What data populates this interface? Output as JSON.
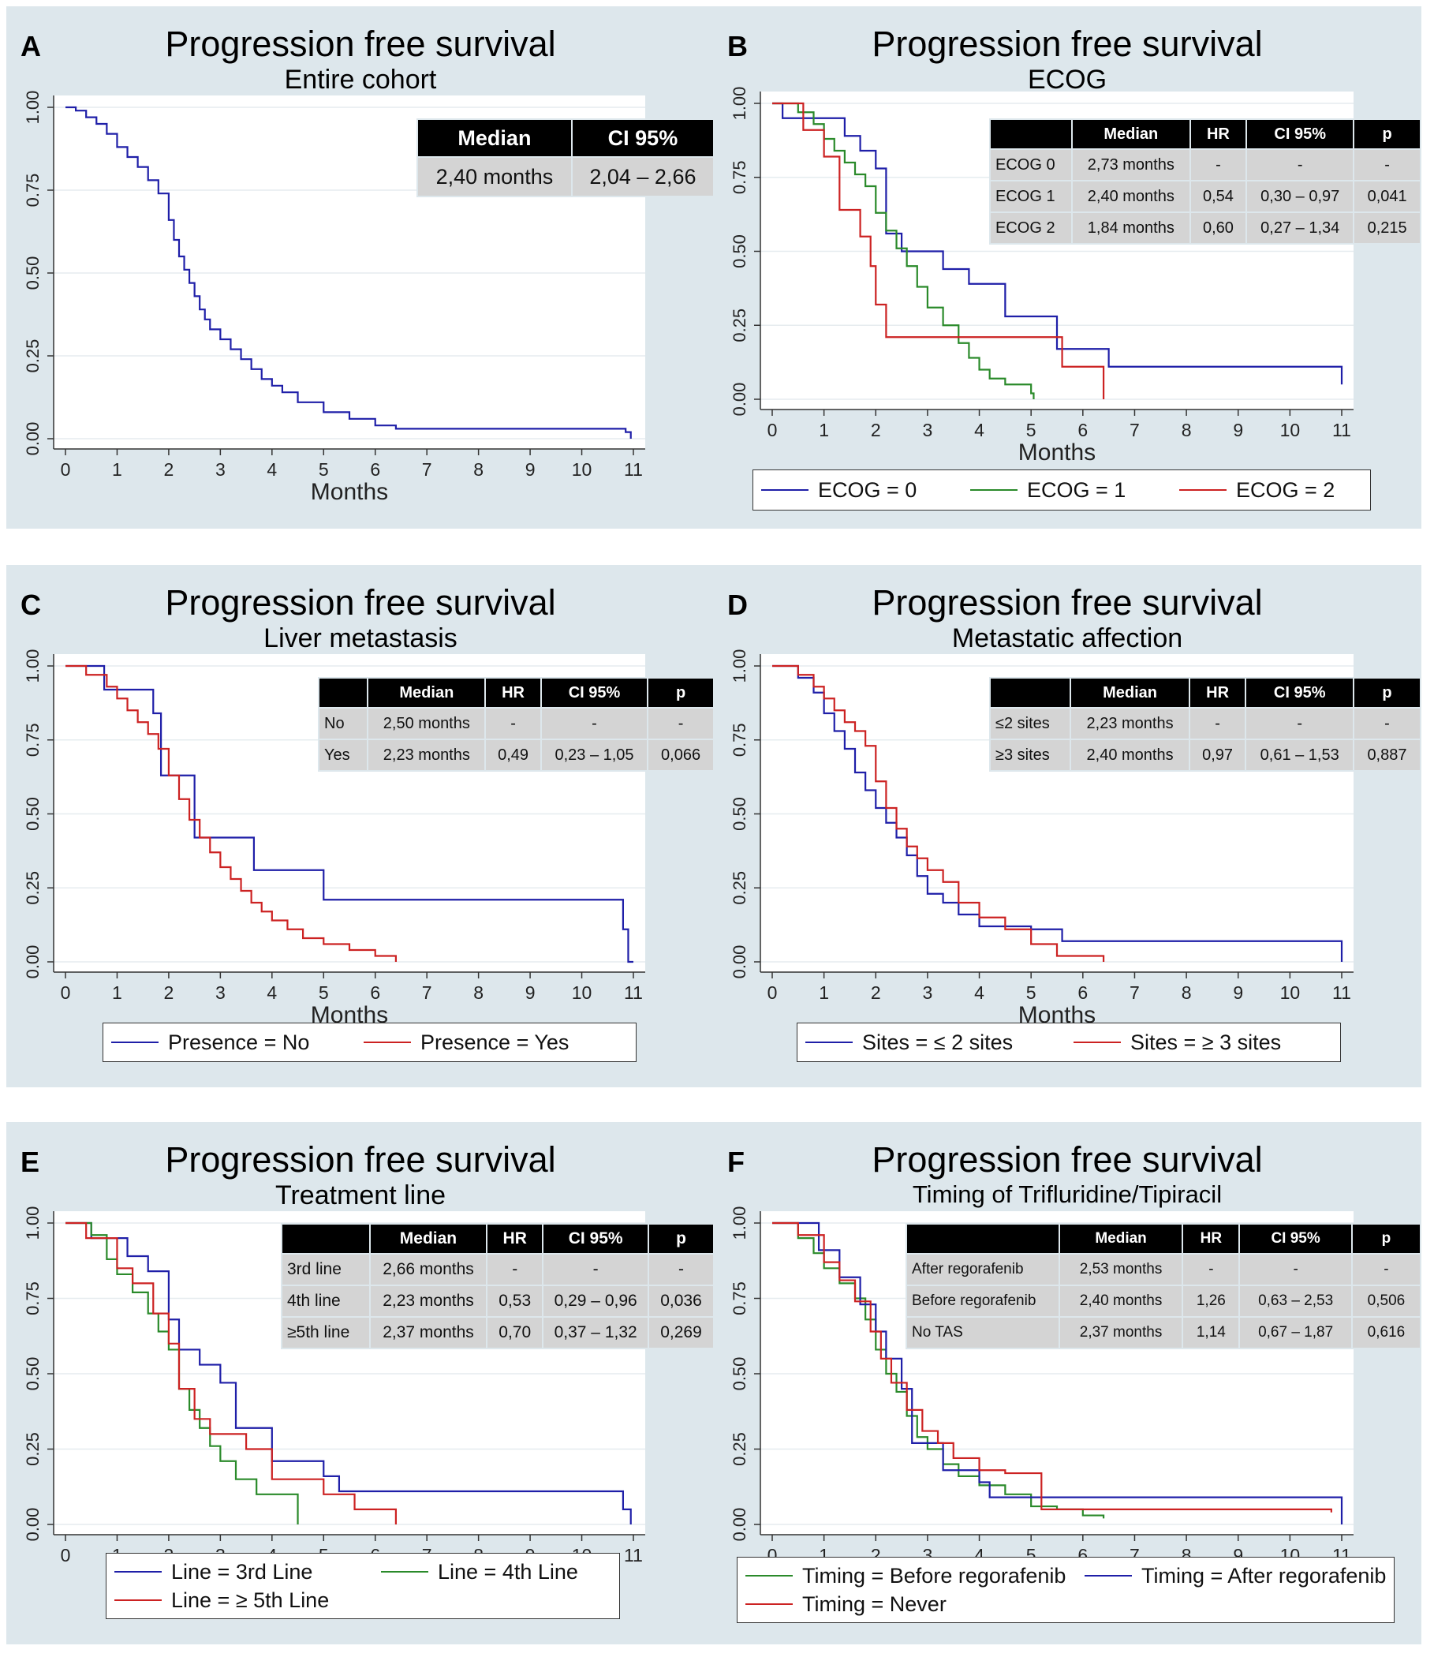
{
  "chart_data": [
    {
      "id": "A",
      "type": "line",
      "step": true,
      "panel_label": "A",
      "title": "Progression free survival",
      "subtitle": "Entire cohort",
      "xlabel": "Months",
      "ylabel": "",
      "xlim": [
        0,
        11
      ],
      "ylim": [
        0,
        1
      ],
      "xticks": [
        "0",
        "1",
        "2",
        "3",
        "4",
        "5",
        "6",
        "7",
        "8",
        "9",
        "10",
        "11"
      ],
      "yticks": [
        "0.00",
        "0.25",
        "0.50",
        "0.75",
        "1.00"
      ],
      "table": {
        "columns": [
          "Median",
          "CI 95%"
        ],
        "rows": [
          [
            "2,40 months",
            "2,04 – 2,66"
          ]
        ]
      },
      "legend": [],
      "series": [
        {
          "name": "Entire cohort",
          "color": "#1f1fa8",
          "x": [
            0,
            0.2,
            0.4,
            0.6,
            0.8,
            1.0,
            1.2,
            1.4,
            1.6,
            1.8,
            2.0,
            2.1,
            2.2,
            2.3,
            2.4,
            2.5,
            2.6,
            2.7,
            2.8,
            3.0,
            3.2,
            3.4,
            3.6,
            3.8,
            4.0,
            4.2,
            4.5,
            5.0,
            5.5,
            6.0,
            6.4,
            8.0,
            10.0,
            10.85,
            10.95
          ],
          "y": [
            1.0,
            0.99,
            0.97,
            0.95,
            0.92,
            0.88,
            0.85,
            0.82,
            0.78,
            0.74,
            0.66,
            0.6,
            0.55,
            0.51,
            0.47,
            0.43,
            0.39,
            0.36,
            0.33,
            0.3,
            0.27,
            0.24,
            0.21,
            0.18,
            0.16,
            0.14,
            0.11,
            0.08,
            0.06,
            0.04,
            0.03,
            0.03,
            0.03,
            0.02,
            0.0
          ]
        }
      ]
    },
    {
      "id": "B",
      "type": "line",
      "step": true,
      "panel_label": "B",
      "title": "Progression free survival",
      "subtitle": "ECOG",
      "xlabel": "Months",
      "ylabel": "",
      "xlim": [
        0,
        11
      ],
      "ylim": [
        0,
        1
      ],
      "xticks": [
        "0",
        "1",
        "2",
        "3",
        "4",
        "5",
        "6",
        "7",
        "8",
        "9",
        "10",
        "11"
      ],
      "yticks": [
        "0.00",
        "0.25",
        "0.50",
        "0.75",
        "1.00"
      ],
      "table": {
        "columns": [
          "",
          "Median",
          "HR",
          "CI 95%",
          "p"
        ],
        "rows": [
          [
            "ECOG 0",
            "2,73 months",
            "-",
            "-",
            "-"
          ],
          [
            "ECOG 1",
            "2,40 months",
            "0,54",
            "0,30 – 0,97",
            "0,041"
          ],
          [
            "ECOG 2",
            "1,84 months",
            "0,60",
            "0,27 – 1,34",
            "0,215"
          ]
        ]
      },
      "legend": [
        "ECOG = 0",
        "ECOG = 1",
        "ECOG = 2"
      ],
      "series": [
        {
          "name": "ECOG = 0",
          "color": "#1f1fa8",
          "x": [
            0,
            0.2,
            0.35,
            1.4,
            1.7,
            2.0,
            2.2,
            2.5,
            3.3,
            3.8,
            4.5,
            5.5,
            6.5,
            10.9,
            11.0
          ],
          "y": [
            1.0,
            0.95,
            0.95,
            0.89,
            0.84,
            0.78,
            0.56,
            0.5,
            0.44,
            0.39,
            0.28,
            0.17,
            0.11,
            0.11,
            0.05
          ]
        },
        {
          "name": "ECOG = 1",
          "color": "#2a8a2a",
          "x": [
            0,
            0.5,
            0.8,
            1.0,
            1.2,
            1.4,
            1.6,
            1.8,
            2.0,
            2.2,
            2.4,
            2.6,
            2.8,
            3.0,
            3.3,
            3.6,
            3.8,
            4.0,
            4.2,
            4.5,
            5.0,
            5.05
          ],
          "y": [
            1.0,
            0.97,
            0.93,
            0.88,
            0.84,
            0.8,
            0.76,
            0.72,
            0.63,
            0.57,
            0.51,
            0.45,
            0.38,
            0.31,
            0.25,
            0.19,
            0.14,
            0.1,
            0.07,
            0.05,
            0.02,
            0.0
          ]
        },
        {
          "name": "ECOG = 2",
          "color": "#cc2222",
          "x": [
            0,
            0.6,
            1.0,
            1.3,
            1.7,
            1.9,
            2.0,
            2.2,
            5.6,
            6.4
          ],
          "y": [
            1.0,
            0.91,
            0.82,
            0.64,
            0.55,
            0.45,
            0.32,
            0.21,
            0.11,
            0.0
          ]
        }
      ]
    },
    {
      "id": "C",
      "type": "line",
      "step": true,
      "panel_label": "C",
      "title": "Progression free survival",
      "subtitle": "Liver metastasis",
      "xlabel": "Months",
      "ylabel": "",
      "xlim": [
        0,
        11
      ],
      "ylim": [
        0,
        1
      ],
      "xticks": [
        "0",
        "1",
        "2",
        "3",
        "4",
        "5",
        "6",
        "7",
        "8",
        "9",
        "10",
        "11"
      ],
      "yticks": [
        "0.00",
        "0.25",
        "0.50",
        "0.75",
        "1.00"
      ],
      "table": {
        "columns": [
          "",
          "Median",
          "HR",
          "CI 95%",
          "p"
        ],
        "rows": [
          [
            "No",
            "2,50 months",
            "-",
            "-",
            "-"
          ],
          [
            "Yes",
            "2,23 months",
            "0,49",
            "0,23 – 1,05",
            "0,066"
          ]
        ]
      },
      "legend": [
        "Presence = No",
        "Presence = Yes"
      ],
      "series": [
        {
          "name": "Presence = No",
          "color": "#1f1fa8",
          "x": [
            0,
            0.75,
            1.7,
            1.85,
            2.5,
            3.65,
            5.0,
            10.8,
            10.9,
            11.0
          ],
          "y": [
            1.0,
            0.92,
            0.84,
            0.63,
            0.42,
            0.31,
            0.21,
            0.11,
            0.0,
            0.0
          ]
        },
        {
          "name": "Presence = Yes",
          "color": "#cc2222",
          "x": [
            0,
            0.4,
            0.8,
            1.0,
            1.2,
            1.4,
            1.6,
            1.8,
            2.0,
            2.2,
            2.4,
            2.6,
            2.8,
            3.0,
            3.2,
            3.4,
            3.6,
            3.8,
            4.0,
            4.3,
            4.6,
            5.0,
            5.5,
            6.0,
            6.4
          ],
          "y": [
            1.0,
            0.97,
            0.93,
            0.89,
            0.85,
            0.81,
            0.77,
            0.72,
            0.63,
            0.55,
            0.48,
            0.42,
            0.37,
            0.32,
            0.28,
            0.24,
            0.2,
            0.17,
            0.14,
            0.11,
            0.08,
            0.06,
            0.04,
            0.02,
            0.0
          ]
        }
      ]
    },
    {
      "id": "D",
      "type": "line",
      "step": true,
      "panel_label": "D",
      "title": "Progression free survival",
      "subtitle": "Metastatic affection",
      "xlabel": "Months",
      "ylabel": "",
      "xlim": [
        0,
        11
      ],
      "ylim": [
        0,
        1
      ],
      "xticks": [
        "0",
        "1",
        "2",
        "3",
        "4",
        "5",
        "6",
        "7",
        "8",
        "9",
        "10",
        "11"
      ],
      "yticks": [
        "0.00",
        "0.25",
        "0.50",
        "0.75",
        "1.00"
      ],
      "table": {
        "columns": [
          "",
          "Median",
          "HR",
          "CI 95%",
          "p"
        ],
        "rows": [
          [
            "≤2 sites",
            "2,23 months",
            "-",
            "-",
            "-"
          ],
          [
            "≥3 sites",
            "2,40 months",
            "0,97",
            "0,61 – 1,53",
            "0,887"
          ]
        ]
      },
      "legend": [
        "Sites = ≤ 2 sites",
        "Sites = ≥ 3 sites"
      ],
      "series": [
        {
          "name": "Sites = ≤ 2 sites",
          "color": "#1f1fa8",
          "x": [
            0,
            0.5,
            0.8,
            1.0,
            1.2,
            1.4,
            1.6,
            1.8,
            2.0,
            2.2,
            2.4,
            2.6,
            2.8,
            3.0,
            3.3,
            3.6,
            4.0,
            4.5,
            5.0,
            5.6,
            10.9,
            11.0
          ],
          "y": [
            1.0,
            0.96,
            0.91,
            0.84,
            0.78,
            0.72,
            0.64,
            0.58,
            0.52,
            0.47,
            0.42,
            0.36,
            0.29,
            0.23,
            0.2,
            0.16,
            0.12,
            0.12,
            0.11,
            0.07,
            0.07,
            0.0
          ]
        },
        {
          "name": "Sites = ≥ 3 sites",
          "color": "#cc2222",
          "x": [
            0,
            0.5,
            0.8,
            1.0,
            1.2,
            1.4,
            1.6,
            1.8,
            2.0,
            2.2,
            2.4,
            2.6,
            2.8,
            3.0,
            3.3,
            3.6,
            4.0,
            4.5,
            5.0,
            5.5,
            6.4
          ],
          "y": [
            1.0,
            0.97,
            0.93,
            0.89,
            0.85,
            0.81,
            0.78,
            0.73,
            0.61,
            0.52,
            0.45,
            0.39,
            0.35,
            0.31,
            0.27,
            0.2,
            0.15,
            0.11,
            0.06,
            0.02,
            0.0
          ]
        }
      ]
    },
    {
      "id": "E",
      "type": "line",
      "step": true,
      "panel_label": "E",
      "title": "Progression free survival",
      "subtitle": "Treatment line",
      "xlabel": "Months",
      "ylabel": "",
      "xlim": [
        0,
        11
      ],
      "ylim": [
        0,
        1
      ],
      "xticks": [
        "0",
        "1",
        "2",
        "3",
        "4",
        "5",
        "6",
        "7",
        "8",
        "9",
        "10",
        "11"
      ],
      "yticks": [
        "0.00",
        "0.25",
        "0.50",
        "0.75",
        "1.00"
      ],
      "table": {
        "columns": [
          "",
          "Median",
          "HR",
          "CI 95%",
          "p"
        ],
        "rows": [
          [
            "3rd line",
            "2,66 months",
            "-",
            "-",
            "-"
          ],
          [
            "4th line",
            "2,23 months",
            "0,53",
            "0,29 – 0,96",
            "0,036"
          ],
          [
            "≥5th line",
            "2,37 months",
            "0,70",
            "0,37 – 1,32",
            "0,269"
          ]
        ]
      },
      "legend": [
        "Line = 3rd Line",
        "Line = 4th Line",
        "Line = ≥ 5th Line"
      ],
      "series": [
        {
          "name": "Line = 3rd Line",
          "color": "#1f1fa8",
          "x": [
            0,
            0.5,
            1.2,
            1.6,
            2.0,
            2.2,
            2.6,
            3.0,
            3.3,
            4.0,
            5.0,
            5.3,
            10.8,
            10.95
          ],
          "y": [
            1.0,
            0.95,
            0.89,
            0.84,
            0.68,
            0.58,
            0.53,
            0.47,
            0.32,
            0.21,
            0.16,
            0.11,
            0.05,
            0.0
          ]
        },
        {
          "name": "Line = 4th Line",
          "color": "#2a8a2a",
          "x": [
            0,
            0.5,
            0.8,
            1.0,
            1.3,
            1.6,
            1.8,
            2.0,
            2.2,
            2.4,
            2.6,
            2.8,
            3.0,
            3.3,
            3.7,
            4.5
          ],
          "y": [
            1.0,
            0.96,
            0.88,
            0.83,
            0.77,
            0.7,
            0.64,
            0.58,
            0.45,
            0.38,
            0.32,
            0.26,
            0.21,
            0.15,
            0.1,
            0.0
          ]
        },
        {
          "name": "Line = ≥ 5th Line",
          "color": "#cc2222",
          "x": [
            0,
            0.4,
            1.0,
            1.3,
            1.7,
            2.0,
            2.2,
            2.5,
            2.8,
            3.5,
            4.0,
            5.0,
            5.6,
            6.4
          ],
          "y": [
            1.0,
            0.95,
            0.85,
            0.8,
            0.7,
            0.6,
            0.45,
            0.35,
            0.3,
            0.25,
            0.15,
            0.1,
            0.05,
            0.0
          ]
        }
      ]
    },
    {
      "id": "F",
      "type": "line",
      "step": true,
      "panel_label": "F",
      "title": "Progression free survival",
      "subtitle": "Timing of Trifluridine/Tipiracil",
      "xlabel": "Months",
      "ylabel": "",
      "xlim": [
        0,
        11
      ],
      "ylim": [
        0,
        1
      ],
      "xticks": [
        "0",
        "1",
        "2",
        "3",
        "4",
        "5",
        "6",
        "7",
        "8",
        "9",
        "10",
        "11"
      ],
      "yticks": [
        "0.00",
        "0.25",
        "0.50",
        "0.75",
        "1.00"
      ],
      "table": {
        "columns": [
          "",
          "Median",
          "HR",
          "CI 95%",
          "p"
        ],
        "rows": [
          [
            "After regorafenib",
            "2,53 months",
            "-",
            "-",
            "-"
          ],
          [
            "Before regorafenib",
            "2,40 months",
            "1,26",
            "0,63 – 2,53",
            "0,506"
          ],
          [
            "No TAS",
            "2,37 months",
            "1,14",
            "0,67 – 1,87",
            "0,616"
          ]
        ]
      },
      "legend": [
        "Timing = Before regorafenib",
        "Timing = After regorafenib",
        "Timing = Never"
      ],
      "series": [
        {
          "name": "Timing = Before regorafenib",
          "color": "#2a8a2a",
          "x": [
            0,
            0.5,
            0.8,
            1.0,
            1.3,
            1.6,
            1.8,
            2.0,
            2.2,
            2.4,
            2.6,
            2.8,
            3.0,
            3.3,
            3.6,
            4.0,
            4.5,
            5.0,
            5.5,
            6.0,
            6.4
          ],
          "y": [
            1.0,
            0.95,
            0.9,
            0.85,
            0.8,
            0.75,
            0.68,
            0.58,
            0.5,
            0.44,
            0.36,
            0.29,
            0.25,
            0.2,
            0.16,
            0.13,
            0.1,
            0.06,
            0.05,
            0.03,
            0.02
          ]
        },
        {
          "name": "Timing = After regorafenib",
          "color": "#1f1fa8",
          "x": [
            0,
            0.9,
            1.3,
            1.7,
            2.0,
            2.2,
            2.5,
            2.7,
            3.3,
            4.0,
            4.2,
            10.95,
            11.0
          ],
          "y": [
            1.0,
            0.91,
            0.82,
            0.73,
            0.64,
            0.55,
            0.45,
            0.27,
            0.18,
            0.14,
            0.09,
            0.09,
            0.0
          ]
        },
        {
          "name": "Timing = Never",
          "color": "#cc2222",
          "x": [
            0,
            0.5,
            1.0,
            1.3,
            1.6,
            1.9,
            2.1,
            2.3,
            2.6,
            2.9,
            3.2,
            3.5,
            4.0,
            4.5,
            5.0,
            5.2,
            10.8
          ],
          "y": [
            1.0,
            0.96,
            0.87,
            0.81,
            0.74,
            0.64,
            0.55,
            0.47,
            0.38,
            0.31,
            0.27,
            0.22,
            0.18,
            0.17,
            0.17,
            0.05,
            0.04
          ]
        }
      ]
    }
  ]
}
